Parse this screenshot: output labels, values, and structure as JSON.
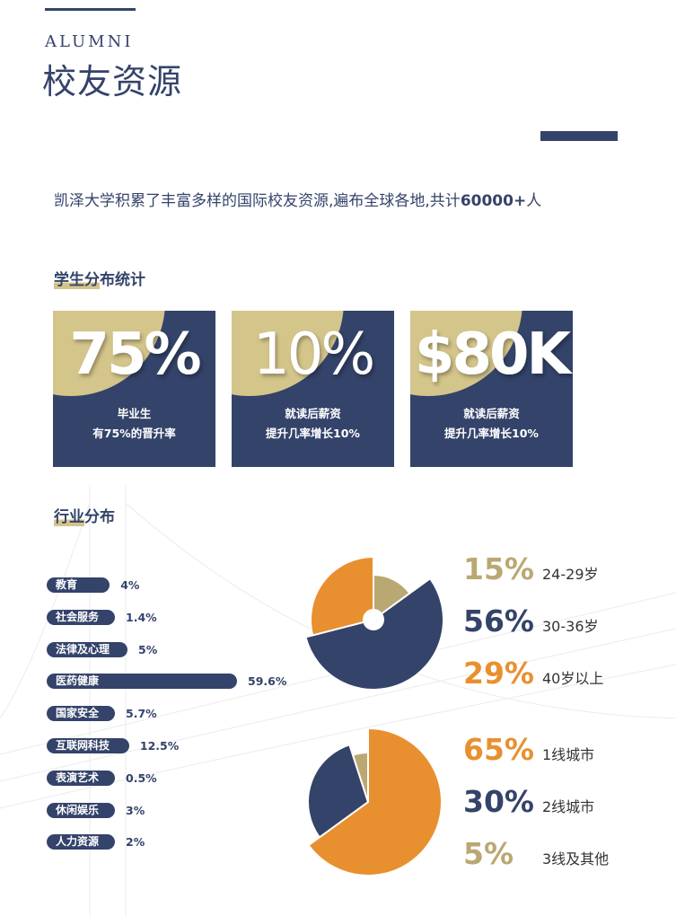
{
  "header": {
    "en_title": "ALUMNI",
    "cn_title": "校友资源"
  },
  "intro": {
    "text": "凯泽大学积累了丰富多样的国际校友资源,遍布全球各地,共计",
    "count": "60000+",
    "suffix": "人"
  },
  "stats": {
    "heading_hl": "学生分",
    "heading_rest": "布统计",
    "cards": [
      {
        "value": "75%",
        "line1": "毕业生",
        "line2": "有75%的晋升率"
      },
      {
        "value": "10%",
        "line1": "就读后薪资",
        "line2": "提升几率增长10%"
      },
      {
        "value": "$80K",
        "line1": "就读后薪资",
        "line2": "提升几率增长10%"
      }
    ]
  },
  "industry": {
    "heading_hl": "行业",
    "heading_rest": "分布",
    "chart_data": {
      "type": "bar",
      "orientation": "horizontal",
      "categories": [
        "教育",
        "社会服务",
        "法律及心理",
        "医药健康",
        "国家安全",
        "互联网科技",
        "表演艺术",
        "休闲娱乐",
        "人力资源"
      ],
      "values": [
        4,
        1.4,
        5,
        59.6,
        5.7,
        12.5,
        0.5,
        3,
        2
      ],
      "labels": [
        "4%",
        "1.4%",
        "5%",
        "59.6%",
        "5.7%",
        "12.5%",
        "0.5%",
        "3%",
        "2%"
      ]
    }
  },
  "colors": {
    "navy": "#34436a",
    "gold": "#b9a872",
    "orange": "#e8902f",
    "card_gold": "#d4c58a"
  },
  "pies": [
    {
      "chart_data": {
        "type": "pie",
        "values": [
          15,
          56,
          29
        ],
        "labels": [
          "15%",
          "56%",
          "29%"
        ],
        "categories": [
          "24-29岁",
          "30-36岁",
          "40岁以上"
        ],
        "colors": [
          "#b9a872",
          "#34436a",
          "#e8902f"
        ]
      }
    },
    {
      "chart_data": {
        "type": "pie",
        "values": [
          65,
          30,
          5
        ],
        "labels": [
          "65%",
          "30%",
          "5%"
        ],
        "categories": [
          "1线城市",
          "2线城市",
          "3线及其他"
        ],
        "colors": [
          "#e8902f",
          "#34436a",
          "#b9a872"
        ]
      }
    }
  ]
}
